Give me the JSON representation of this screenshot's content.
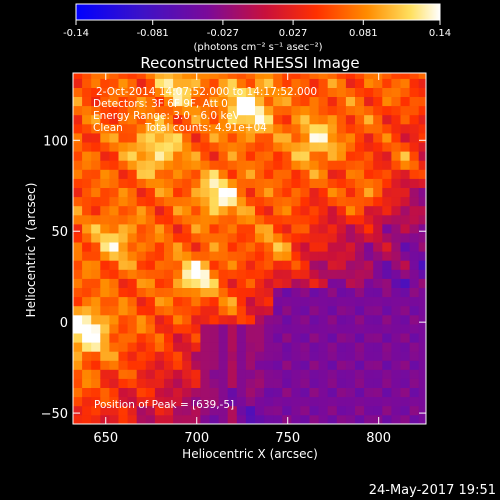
{
  "colorbar": {
    "tick_labels": [
      "-0.14",
      "-0.081",
      "-0.027",
      "0.027",
      "0.081",
      "0.14"
    ],
    "tick_values": [
      -0.14,
      -0.081,
      -0.027,
      0.027,
      0.081,
      0.14
    ],
    "units": "(photons cm⁻² s⁻¹ asec⁻²)",
    "range": [
      -0.14,
      0.14
    ]
  },
  "chart_data": {
    "type": "heatmap",
    "title": "Reconstructed RHESSI Image",
    "xlabel": "Heliocentric X (arcsec)",
    "ylabel": "Heliocentric Y (arcsec)",
    "xlim": [
      632,
      826
    ],
    "ylim": [
      -56,
      137
    ],
    "xticks": [
      650,
      700,
      750,
      800
    ],
    "yticks": [
      -50,
      0,
      50,
      100
    ],
    "xtick_labels": [
      "650",
      "700",
      "750",
      "800"
    ],
    "ytick_labels": [
      "−50",
      "0",
      "50",
      "100"
    ],
    "colormap": "RHESSI rainbow (blue-purple-red-orange-yellow-white)",
    "peak": [
      639,
      -5
    ],
    "annotations": {
      "line1": "2-Oct-2014 14:07:52.000 to 14:17:52.000",
      "line2": "Detectors: 3F 6F 9F, Att 0",
      "line3": "Energy Range: 3.0 - 6.0 keV",
      "line4_method": "Clean",
      "line4_counts": "Total counts: 4.91e+04",
      "peak_text": "Position of Peak = [639,-5]"
    }
  },
  "footer": {
    "timestamp": "24-May-2017 19:51"
  }
}
